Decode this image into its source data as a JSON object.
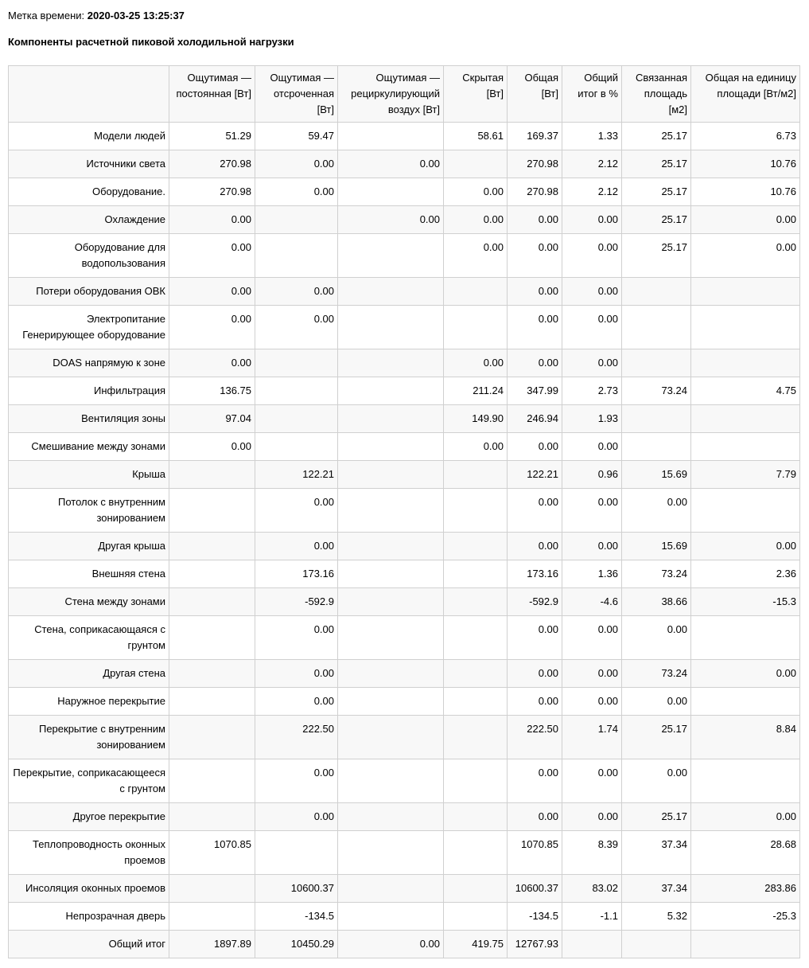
{
  "timestamp_label": "Метка времени:",
  "timestamp_value": "2020-03-25 13:25:37",
  "title": "Компоненты расчетной пиковой холодильной нагрузки",
  "columns": [
    "",
    "Ощутимая — постоянная [Вт]",
    "Ощутимая — отсроченная [Вт]",
    "Ощутимая — рециркулирующий воздух [Вт]",
    "Скрытая [Вт]",
    "Общая [Вт]",
    "Общий итог в %",
    "Связанная площадь [м2]",
    "Общая на единицу площади [Вт/м2]"
  ],
  "rows": [
    [
      "Модели людей",
      "51.29",
      "59.47",
      "",
      "58.61",
      "169.37",
      "1.33",
      "25.17",
      "6.73"
    ],
    [
      "Источники света",
      "270.98",
      "0.00",
      "0.00",
      "",
      "270.98",
      "2.12",
      "25.17",
      "10.76"
    ],
    [
      "Оборудование.",
      "270.98",
      "0.00",
      "",
      "0.00",
      "270.98",
      "2.12",
      "25.17",
      "10.76"
    ],
    [
      "Охлаждение",
      "0.00",
      "",
      "0.00",
      "0.00",
      "0.00",
      "0.00",
      "25.17",
      "0.00"
    ],
    [
      "Оборудование для водопользования",
      "0.00",
      "",
      "",
      "0.00",
      "0.00",
      "0.00",
      "25.17",
      "0.00"
    ],
    [
      "Потери оборудования ОВК",
      "0.00",
      "0.00",
      "",
      "",
      "0.00",
      "0.00",
      "",
      ""
    ],
    [
      "Электропитание Генерирующее оборудование",
      "0.00",
      "0.00",
      "",
      "",
      "0.00",
      "0.00",
      "",
      ""
    ],
    [
      "DOAS напрямую к зоне",
      "0.00",
      "",
      "",
      "0.00",
      "0.00",
      "0.00",
      "",
      ""
    ],
    [
      "Инфильтрация",
      "136.75",
      "",
      "",
      "211.24",
      "347.99",
      "2.73",
      "73.24",
      "4.75"
    ],
    [
      "Вентиляция зоны",
      "97.04",
      "",
      "",
      "149.90",
      "246.94",
      "1.93",
      "",
      ""
    ],
    [
      "Смешивание между зонами",
      "0.00",
      "",
      "",
      "0.00",
      "0.00",
      "0.00",
      "",
      ""
    ],
    [
      "Крыша",
      "",
      "122.21",
      "",
      "",
      "122.21",
      "0.96",
      "15.69",
      "7.79"
    ],
    [
      "Потолок с внутренним зонированием",
      "",
      "0.00",
      "",
      "",
      "0.00",
      "0.00",
      "0.00",
      ""
    ],
    [
      "Другая крыша",
      "",
      "0.00",
      "",
      "",
      "0.00",
      "0.00",
      "15.69",
      "0.00"
    ],
    [
      "Внешняя стена",
      "",
      "173.16",
      "",
      "",
      "173.16",
      "1.36",
      "73.24",
      "2.36"
    ],
    [
      "Стена между зонами",
      "",
      "-592.9",
      "",
      "",
      "-592.9",
      "-4.6",
      "38.66",
      "-15.3"
    ],
    [
      "Стена, соприкасающаяся с грунтом",
      "",
      "0.00",
      "",
      "",
      "0.00",
      "0.00",
      "0.00",
      ""
    ],
    [
      "Другая стена",
      "",
      "0.00",
      "",
      "",
      "0.00",
      "0.00",
      "73.24",
      "0.00"
    ],
    [
      "Наружное перекрытие",
      "",
      "0.00",
      "",
      "",
      "0.00",
      "0.00",
      "0.00",
      ""
    ],
    [
      "Перекрытие с внутренним зонированием",
      "",
      "222.50",
      "",
      "",
      "222.50",
      "1.74",
      "25.17",
      "8.84"
    ],
    [
      "Перекрытие, соприкасающееся с грунтом",
      "",
      "0.00",
      "",
      "",
      "0.00",
      "0.00",
      "0.00",
      ""
    ],
    [
      "Другое перекрытие",
      "",
      "0.00",
      "",
      "",
      "0.00",
      "0.00",
      "25.17",
      "0.00"
    ],
    [
      "Теплопроводность оконных проемов",
      "1070.85",
      "",
      "",
      "",
      "1070.85",
      "8.39",
      "37.34",
      "28.68"
    ],
    [
      "Инсоляция оконных проемов",
      "",
      "10600.37",
      "",
      "",
      "10600.37",
      "83.02",
      "37.34",
      "283.86"
    ],
    [
      "Непрозрачная дверь",
      "",
      "-134.5",
      "",
      "",
      "-134.5",
      "-1.1",
      "5.32",
      "-25.3"
    ],
    [
      "Общий итог",
      "1897.89",
      "10450.29",
      "0.00",
      "419.75",
      "12767.93",
      "",
      "",
      ""
    ]
  ]
}
